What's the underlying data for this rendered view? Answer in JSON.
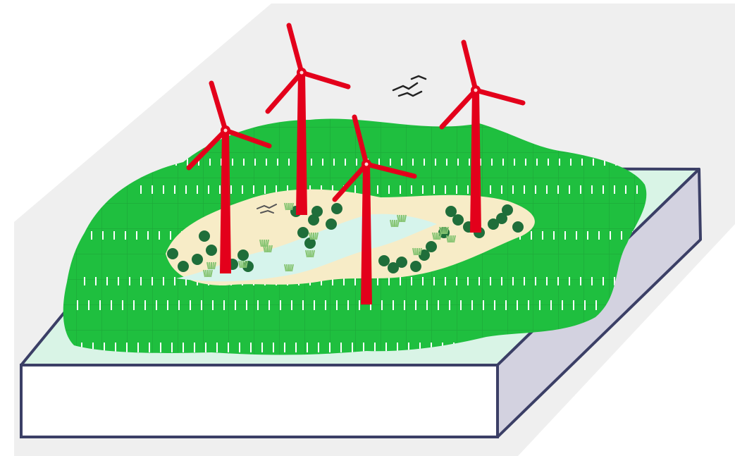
{
  "scene": {
    "colors": {
      "background": "#ffffff",
      "backdrop": "#efefef",
      "ground_top": "#d9f4e6",
      "block_front": "#ffffff",
      "block_side": "#d3d2e0",
      "block_edge": "#3b3f66",
      "vegetation": "#1fbf3f",
      "vegetation_grid": "#1a9a34",
      "clearing": "#f7ecc7",
      "wetland": "#d6f4ec",
      "shrub": "#1f6e3a",
      "reed": "#86c472",
      "turbine": "#e3001b",
      "bird": "#222222"
    },
    "icons": [
      "wind-turbine-icon",
      "tree-icon",
      "bird-icon",
      "grass-tuft-icon"
    ],
    "turbine_count": 4,
    "bird_count": 2
  }
}
